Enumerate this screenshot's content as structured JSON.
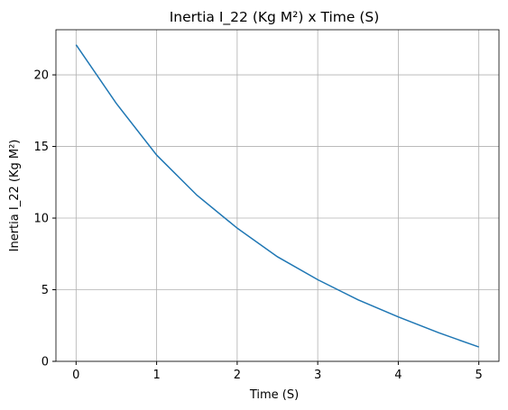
{
  "chart_data": {
    "type": "line",
    "title": "Inertia I_22 (Kg M²) x Time (S)",
    "x_label": "Time (S)",
    "y_label": "Inertia I_22 (Kg M²)",
    "x": [
      0,
      0.5,
      1,
      1.5,
      2,
      2.5,
      3,
      3.5,
      4,
      4.5,
      5
    ],
    "series": [
      {
        "name": "I_22",
        "color": "#1f77b4",
        "values": [
          22.1,
          18.0,
          14.4,
          11.6,
          9.3,
          7.3,
          5.7,
          4.3,
          3.1,
          2.0,
          1.0
        ]
      }
    ],
    "xlim": [
      -0.25,
      5.25
    ],
    "ylim": [
      0,
      23.15
    ],
    "xticks": [
      0,
      1,
      2,
      3,
      4,
      5
    ],
    "yticks": [
      0,
      5,
      10,
      15,
      20
    ],
    "grid": true
  }
}
